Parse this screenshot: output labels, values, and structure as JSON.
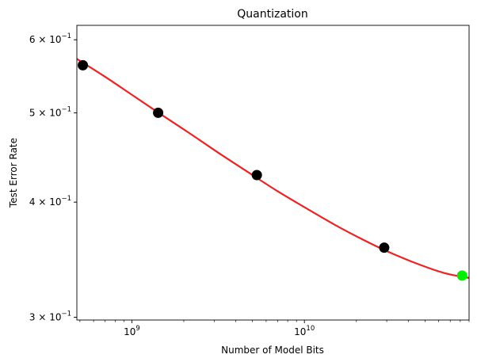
{
  "chart_data": {
    "type": "scatter",
    "title": "Quantization",
    "xlabel": "Number of Model Bits",
    "ylabel": "Test Error Rate",
    "xscale": "log",
    "yscale": "log",
    "xlim": [
      480000000.0,
      90000000000.0
    ],
    "ylim": [
      0.298,
      0.622
    ],
    "x_ticks": [
      {
        "value": 1000000000.0,
        "label": "10",
        "exp": "9"
      },
      {
        "value": 10000000000.0,
        "label": "10",
        "exp": "10"
      }
    ],
    "y_ticks": [
      {
        "value": 0.3,
        "label": "3 × 10",
        "exp": "−1"
      },
      {
        "value": 0.4,
        "label": "4 × 10",
        "exp": "−1"
      },
      {
        "value": 0.5,
        "label": "5 × 10",
        "exp": "−1"
      },
      {
        "value": 0.6,
        "label": "6 × 10",
        "exp": "−1"
      }
    ],
    "points": [
      {
        "x": 520000000.0,
        "y": 0.563,
        "color": "#000000"
      },
      {
        "x": 1420000000.0,
        "y": 0.5,
        "color": "#000000"
      },
      {
        "x": 5300000000.0,
        "y": 0.428,
        "color": "#000000"
      },
      {
        "x": 29000000000.0,
        "y": 0.357,
        "color": "#000000"
      },
      {
        "x": 82000000000.0,
        "y": 0.333,
        "color": "#00ee00"
      }
    ],
    "fit_curve": {
      "color": "#ee2222",
      "x": [
        480000000.0,
        700000000.0,
        1000000000.0,
        1500000000.0,
        2200000000.0,
        3200000000.0,
        5000000000.0,
        7000000000.0,
        10000000000.0,
        15000000000.0,
        22000000000.0,
        30000000000.0,
        45000000000.0,
        65000000000.0,
        90000000000.0
      ],
      "y": [
        0.572,
        0.547,
        0.523,
        0.497,
        0.474,
        0.452,
        0.428,
        0.411,
        0.395,
        0.378,
        0.364,
        0.354,
        0.343,
        0.335,
        0.331
      ]
    }
  }
}
